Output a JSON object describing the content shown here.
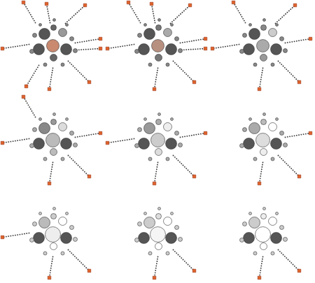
{
  "chart_data": [
    {
      "type": "scatter",
      "tick_labels": false,
      "xlim": [
        -75,
        75
      ],
      "ylim": [
        -70,
        65
      ],
      "circles": {
        "x": [
          -12,
          14,
          1,
          -20,
          0,
          19,
          1,
          -26,
          27,
          -30,
          32,
          -11,
          14,
          2,
          -18,
          20
        ],
        "y": [
          17,
          19,
          26,
          -5,
          0,
          -5,
          -17,
          15,
          10,
          -8,
          -7,
          -27,
          -27,
          37,
          30,
          30
        ],
        "size": [
          8,
          6,
          4,
          8,
          9,
          8,
          5,
          3,
          3,
          3,
          3,
          2.5,
          2.5,
          2,
          2,
          2
        ],
        "colors": [
          "#555555",
          "#999999",
          "#666666",
          "#555555",
          "#c98a70",
          "#555555",
          "#666666",
          "#888888",
          "#888888",
          "#888888",
          "#888888",
          "#888888",
          "#888888",
          "#888888",
          "#888888",
          "#888888"
        ]
      },
      "trails": {
        "line_style": "dotted",
        "marker": "square",
        "color": "#e0622a",
        "x0": [
          -25,
          -4,
          18,
          32,
          34,
          22,
          0,
          -20,
          -34
        ],
        "y0": [
          33,
          33,
          32,
          4,
          -6,
          -22,
          -32,
          -28,
          2
        ],
        "x1": [
          -42,
          -9,
          46,
          68,
          68,
          52,
          -5,
          -38,
          -72
        ],
        "y1": [
          62,
          60,
          58,
          10,
          -4,
          -52,
          -62,
          -58,
          -4
        ]
      }
    },
    {
      "type": "scatter",
      "tick_labels": false,
      "xlim": [
        -75,
        75
      ],
      "ylim": [
        -70,
        65
      ],
      "circles": {
        "x": [
          -12,
          14,
          1,
          -20,
          0,
          19,
          1,
          -26,
          27,
          -30,
          32,
          -11,
          14,
          2,
          -18,
          20
        ],
        "y": [
          17,
          19,
          26,
          -5,
          0,
          -5,
          -17,
          15,
          10,
          -8,
          -7,
          -27,
          -27,
          37,
          30,
          30
        ],
        "size": [
          8,
          6,
          4,
          8,
          9,
          8,
          5,
          3,
          3,
          3,
          3,
          2.5,
          2.5,
          2,
          2,
          2
        ],
        "colors": [
          "#555555",
          "#aaaaaa",
          "#777777",
          "#555555",
          "#b89080",
          "#555555",
          "#777777",
          "#888888",
          "#888888",
          "#888888",
          "#888888",
          "#888888",
          "#888888",
          "#888888",
          "#888888",
          "#888888"
        ]
      },
      "trails": {
        "line_style": "dotted",
        "marker": "square",
        "color": "#e0622a",
        "x0": [
          -25,
          -4,
          18,
          32,
          34,
          22,
          0,
          -34
        ],
        "y0": [
          33,
          33,
          32,
          4,
          -6,
          -22,
          -32,
          2
        ],
        "x1": [
          -42,
          -9,
          46,
          68,
          68,
          52,
          -5,
          -72
        ],
        "y1": [
          62,
          60,
          58,
          10,
          -4,
          -52,
          -62,
          -4
        ]
      }
    },
    {
      "type": "scatter",
      "tick_labels": false,
      "xlim": [
        -75,
        75
      ],
      "ylim": [
        -70,
        65
      ],
      "circles": {
        "x": [
          -12,
          14,
          1,
          -20,
          0,
          19,
          1,
          -26,
          27,
          -30,
          32,
          -11,
          14,
          2,
          -18,
          20
        ],
        "y": [
          17,
          19,
          26,
          -5,
          0,
          -5,
          -17,
          15,
          10,
          -8,
          -7,
          -27,
          -27,
          37,
          30,
          30
        ],
        "size": [
          8,
          6,
          4,
          8,
          9,
          8,
          5,
          3,
          3,
          3,
          3,
          2.5,
          2.5,
          2,
          2,
          2
        ],
        "colors": [
          "#555555",
          "#cccccc",
          "#888888",
          "#555555",
          "#aaaaaa",
          "#555555",
          "#999999",
          "#888888",
          "#888888",
          "#888888",
          "#888888",
          "#888888",
          "#888888",
          "#888888",
          "#888888",
          "#888888"
        ]
      },
      "trails": {
        "line_style": "dotted",
        "marker": "square",
        "color": "#e0622a",
        "x0": [
          -25,
          18,
          32,
          22,
          0,
          -34
        ],
        "y0": [
          33,
          32,
          4,
          -22,
          -32,
          2
        ],
        "x1": [
          -42,
          46,
          68,
          52,
          -5,
          -72
        ],
        "y1": [
          62,
          58,
          10,
          -52,
          -62,
          -4
        ]
      }
    },
    {
      "type": "scatter",
      "tick_labels": false,
      "xlim": [
        -75,
        75
      ],
      "ylim": [
        -70,
        65
      ],
      "circles": {
        "x": [
          -12,
          14,
          1,
          -20,
          0,
          19,
          1,
          -26,
          27,
          -30,
          32,
          -11,
          14,
          2,
          -18,
          20
        ],
        "y": [
          17,
          19,
          26,
          -5,
          0,
          -5,
          -17,
          15,
          10,
          -8,
          -7,
          -27,
          -27,
          37,
          30,
          30
        ],
        "size": [
          8,
          6,
          4,
          8,
          10,
          8,
          5,
          3,
          3,
          3,
          3,
          2.5,
          2.5,
          2,
          2,
          2
        ],
        "colors": [
          "#888888",
          "#dddddd",
          "#999999",
          "#555555",
          "#bbbbbb",
          "#555555",
          "#bbbbbb",
          "#aaaaaa",
          "#aaaaaa",
          "#aaaaaa",
          "#aaaaaa",
          "#aaaaaa",
          "#aaaaaa",
          "#aaaaaa",
          "#aaaaaa",
          "#aaaaaa"
        ]
      },
      "trails": {
        "line_style": "dotted",
        "marker": "square",
        "color": "#e0622a",
        "x0": [
          -25,
          32,
          22,
          0,
          -34
        ],
        "y0": [
          33,
          4,
          -22,
          -32,
          2
        ],
        "x1": [
          -42,
          68,
          52,
          -5,
          -72
        ],
        "y1": [
          62,
          10,
          -52,
          -62,
          -4
        ]
      }
    },
    {
      "type": "scatter",
      "tick_labels": false,
      "xlim": [
        -75,
        75
      ],
      "ylim": [
        -70,
        65
      ],
      "circles": {
        "x": [
          -12,
          14,
          1,
          -20,
          0,
          19,
          1,
          -26,
          27,
          -30,
          32,
          -11,
          14,
          2,
          -18,
          20
        ],
        "y": [
          17,
          19,
          26,
          -5,
          0,
          -5,
          -17,
          15,
          10,
          -8,
          -7,
          -27,
          -27,
          37,
          30,
          30
        ],
        "size": [
          8,
          6,
          4,
          8,
          10,
          8,
          5,
          3,
          3,
          3,
          3,
          2.5,
          2.5,
          2,
          2,
          2
        ],
        "colors": [
          "#999999",
          "#eeeeee",
          "#aaaaaa",
          "#555555",
          "#cccccc",
          "#555555",
          "#dddddd",
          "#aaaaaa",
          "#aaaaaa",
          "#aaaaaa",
          "#aaaaaa",
          "#aaaaaa",
          "#aaaaaa",
          "#aaaaaa",
          "#aaaaaa",
          "#aaaaaa"
        ]
      },
      "trails": {
        "line_style": "dotted",
        "marker": "square",
        "color": "#e0622a",
        "x0": [
          32,
          22,
          0,
          -34
        ],
        "y0": [
          4,
          -22,
          -32,
          2
        ],
        "x1": [
          68,
          52,
          -5,
          -72
        ],
        "y1": [
          10,
          -52,
          -62,
          -4
        ]
      }
    },
    {
      "type": "scatter",
      "tick_labels": false,
      "xlim": [
        -75,
        75
      ],
      "ylim": [
        -70,
        65
      ],
      "circles": {
        "x": [
          -12,
          14,
          1,
          -20,
          0,
          19,
          1,
          -26,
          27,
          -30,
          32,
          -11,
          14,
          2,
          -18,
          20
        ],
        "y": [
          17,
          19,
          26,
          -5,
          0,
          -5,
          -17,
          15,
          10,
          -8,
          -7,
          -27,
          -27,
          37,
          30,
          30
        ],
        "size": [
          8,
          6,
          4,
          8,
          10,
          8,
          5,
          3,
          3,
          3,
          3,
          2.5,
          2.5,
          2,
          2,
          2
        ],
        "colors": [
          "#aaaaaa",
          "#ffffff",
          "#bbbbbb",
          "#555555",
          "#dddddd",
          "#555555",
          "#eeeeee",
          "#aaaaaa",
          "#aaaaaa",
          "#aaaaaa",
          "#aaaaaa",
          "#aaaaaa",
          "#aaaaaa",
          "#aaaaaa",
          "#aaaaaa",
          "#aaaaaa"
        ]
      },
      "trails": {
        "line_style": "dotted",
        "marker": "square",
        "color": "#e0622a",
        "x0": [
          32,
          22,
          0
        ],
        "y0": [
          4,
          -22,
          -32
        ],
        "x1": [
          68,
          52,
          -5
        ],
        "y1": [
          10,
          -52,
          -62
        ]
      }
    },
    {
      "type": "scatter",
      "tick_labels": false,
      "xlim": [
        -75,
        75
      ],
      "ylim": [
        -70,
        65
      ],
      "circles": {
        "x": [
          -12,
          14,
          1,
          -20,
          0,
          19,
          1,
          -26,
          27,
          -30,
          32,
          -11,
          14,
          2,
          -18,
          20
        ],
        "y": [
          17,
          19,
          26,
          -5,
          0,
          -5,
          -17,
          15,
          10,
          -8,
          -7,
          -27,
          -27,
          37,
          30,
          30
        ],
        "size": [
          8,
          6,
          4,
          8,
          11,
          8,
          5,
          3,
          3,
          3,
          3,
          2.5,
          2.5,
          2,
          2,
          2
        ],
        "colors": [
          "#bbbbbb",
          "#ffffff",
          "#cccccc",
          "#555555",
          "#eeeeee",
          "#555555",
          "#ffffff",
          "#cccccc",
          "#cccccc",
          "#cccccc",
          "#cccccc",
          "#cccccc",
          "#cccccc",
          "#cccccc",
          "#cccccc",
          "#cccccc"
        ]
      },
      "trails": {
        "line_style": "dotted",
        "marker": "square",
        "color": "#e0622a",
        "x0": [
          22,
          0,
          -34
        ],
        "y0": [
          -22,
          -32,
          2
        ],
        "x1": [
          52,
          -5,
          -72
        ],
        "y1": [
          -52,
          -62,
          -4
        ]
      }
    },
    {
      "type": "scatter",
      "tick_labels": false,
      "xlim": [
        -75,
        75
      ],
      "ylim": [
        -70,
        65
      ],
      "circles": {
        "x": [
          -12,
          14,
          1,
          -20,
          0,
          19,
          1,
          -26,
          27,
          -30,
          32,
          -11,
          14,
          2,
          -18,
          20
        ],
        "y": [
          17,
          19,
          26,
          -5,
          0,
          -5,
          -17,
          15,
          10,
          -8,
          -7,
          -27,
          -27,
          37,
          30,
          30
        ],
        "size": [
          8,
          6,
          4,
          8,
          11,
          8,
          5,
          3,
          3,
          3,
          3,
          2.5,
          2.5,
          2,
          2,
          2
        ],
        "colors": [
          "#cccccc",
          "#ffffff",
          "#dddddd",
          "#555555",
          "#f5f5f5",
          "#555555",
          "#ffffff",
          "#cccccc",
          "#cccccc",
          "#cccccc",
          "#cccccc",
          "#cccccc",
          "#cccccc",
          "#cccccc",
          "#cccccc",
          "#cccccc"
        ]
      },
      "trails": {
        "line_style": "dotted",
        "marker": "square",
        "color": "#e0622a",
        "x0": [
          22,
          0
        ],
        "y0": [
          -22,
          -32
        ],
        "x1": [
          52,
          -5
        ],
        "y1": [
          -52,
          -62
        ]
      }
    },
    {
      "type": "scatter",
      "tick_labels": false,
      "xlim": [
        -75,
        75
      ],
      "ylim": [
        -70,
        65
      ],
      "circles": {
        "x": [
          -12,
          14,
          1,
          -20,
          0,
          19,
          1,
          -26,
          27,
          -30,
          32,
          -11,
          14,
          2,
          -18,
          20
        ],
        "y": [
          17,
          19,
          26,
          -5,
          0,
          -5,
          -17,
          15,
          10,
          -8,
          -7,
          -27,
          -27,
          37,
          30,
          30
        ],
        "size": [
          8,
          6,
          4,
          8,
          11,
          8,
          5,
          3,
          3,
          3,
          3,
          2.5,
          2.5,
          2,
          2,
          2
        ],
        "colors": [
          "#cccccc",
          "#ffffff",
          "#eeeeee",
          "#555555",
          "#ffffff",
          "#555555",
          "#ffffff",
          "#cccccc",
          "#cccccc",
          "#cccccc",
          "#cccccc",
          "#cccccc",
          "#cccccc",
          "#cccccc",
          "#cccccc",
          "#cccccc"
        ]
      },
      "trails": {
        "line_style": "dotted",
        "marker": "square",
        "color": "#e0622a",
        "x0": [
          22,
          0
        ],
        "y0": [
          -22,
          -32
        ],
        "x1": [
          52,
          -5
        ],
        "y1": [
          -52,
          -62
        ]
      }
    }
  ]
}
